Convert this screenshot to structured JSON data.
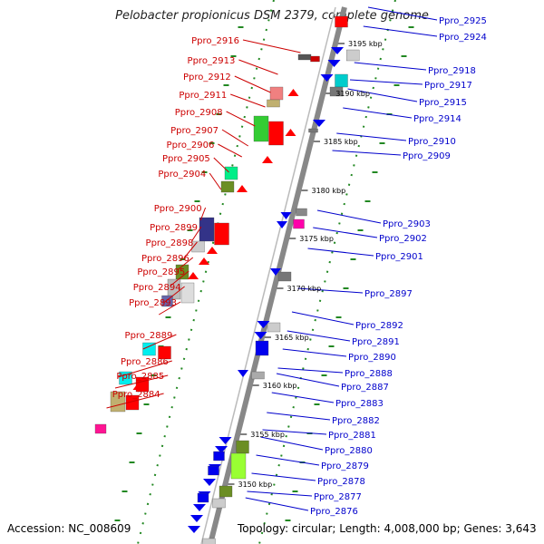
{
  "title": "Pelobacter propionicus DSM 2379, complete genome",
  "footer": {
    "accession": "Accession: NC_008609",
    "topology": "Topology: circular; Length: 4,008,000 bp; Genes: 3,643"
  },
  "colors": {
    "forward_strand_label": "#cc0000",
    "reverse_strand_label": "#0000cc",
    "forward_gene": "#ff0000",
    "reverse_gene": "#0000ee",
    "backbone": "#888888",
    "dotted_track": "#228822",
    "tick": "#555555"
  },
  "kbp_marks": [
    "3195 kbp",
    "3190 kbp",
    "3185 kbp",
    "3180 kbp",
    "3175 kbp",
    "3170 kbp",
    "3165 kbp",
    "3160 kbp",
    "3155 kbp",
    "3150 kbp"
  ],
  "left_labels": [
    "Ppro_2916",
    "Ppro_2913",
    "Ppro_2912",
    "Ppro_2911",
    "Ppro_2908",
    "Ppro_2907",
    "Ppro_2906",
    "Ppro_2905",
    "Ppro_2904",
    "Ppro_2900",
    "Ppro_2899",
    "Ppro_2898",
    "Ppro_2896",
    "Ppro_2895",
    "Ppro_2894",
    "Ppro_2893",
    "Ppro_2889",
    "Ppro_2886",
    "Ppro_2885",
    "Ppro_2884"
  ],
  "right_labels": [
    "Ppro_2925",
    "Ppro_2924",
    "Ppro_2918",
    "Ppro_2917",
    "Ppro_2915",
    "Ppro_2914",
    "Ppro_2910",
    "Ppro_2909",
    "Ppro_2903",
    "Ppro_2902",
    "Ppro_2901",
    "Ppro_2897",
    "Ppro_2892",
    "Ppro_2891",
    "Ppro_2890",
    "Ppro_2888",
    "Ppro_2887",
    "Ppro_2883",
    "Ppro_2882",
    "Ppro_2881",
    "Ppro_2880",
    "Ppro_2879",
    "Ppro_2878",
    "Ppro_2877",
    "Ppro_2876"
  ]
}
